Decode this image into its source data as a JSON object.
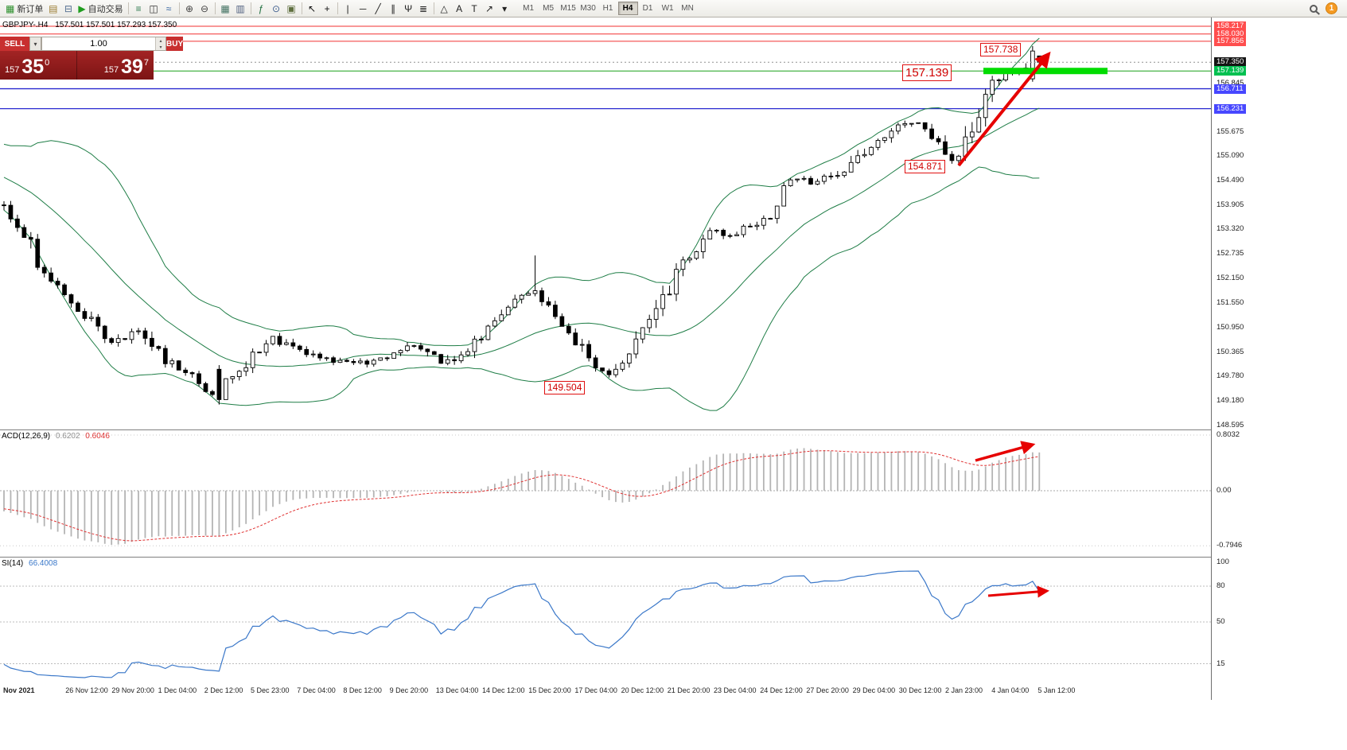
{
  "toolbar": {
    "notification_count": "1",
    "active_timeframe": "H4",
    "timeframes": [
      "M1",
      "M5",
      "M15",
      "M30",
      "H1",
      "H4",
      "D1",
      "W1",
      "MN"
    ],
    "items": [
      {
        "type": "button",
        "name": "new-order-button",
        "glyph": "▦",
        "glyph_color": "#2a8f2a",
        "label": "新订单"
      },
      {
        "type": "icon",
        "name": "market-depth-icon",
        "glyph": "▤",
        "color": "#9a7b2f"
      },
      {
        "type": "icon",
        "name": "history-center-icon",
        "glyph": "⊟",
        "color": "#4f6b8f"
      },
      {
        "type": "button",
        "name": "auto-trading-button",
        "glyph": "▶",
        "glyph_color": "#1f9d1f",
        "label": "自动交易"
      },
      {
        "type": "sep"
      },
      {
        "type": "icon",
        "name": "bar-chart-icon",
        "glyph": "≡",
        "color": "#2f7a4f"
      },
      {
        "type": "icon",
        "name": "candlestick-chart-icon",
        "glyph": "◫",
        "color": "#333333"
      },
      {
        "type": "icon",
        "name": "line-chart-icon",
        "glyph": "≈",
        "color": "#2f5f9f"
      },
      {
        "type": "sep"
      },
      {
        "type": "icon",
        "name": "zoom-in-icon",
        "glyph": "⊕",
        "color": "#444444"
      },
      {
        "type": "icon",
        "name": "zoom-out-icon",
        "glyph": "⊖",
        "color": "#444444"
      },
      {
        "type": "sep"
      },
      {
        "type": "icon",
        "name": "tile-windows-icon",
        "glyph": "▦",
        "color": "#3f6f5f"
      },
      {
        "type": "icon",
        "name": "arrange-windows-icon",
        "glyph": "▥",
        "color": "#4f5f7f"
      },
      {
        "type": "sep"
      },
      {
        "type": "icon",
        "name": "indicators-icon",
        "glyph": "ƒ",
        "color": "#1f6f3f"
      },
      {
        "type": "icon",
        "name": "period-clock-icon",
        "glyph": "⊙",
        "color": "#3f5f8f"
      },
      {
        "type": "icon",
        "name": "templates-icon",
        "glyph": "▣",
        "color": "#5f6f3f"
      },
      {
        "type": "sep"
      },
      {
        "type": "icon",
        "name": "cursor-icon",
        "glyph": "↖",
        "color": "#111111"
      },
      {
        "type": "icon",
        "name": "crosshair-icon",
        "glyph": "+",
        "color": "#111111"
      },
      {
        "type": "sep"
      },
      {
        "type": "icon",
        "name": "vertical-line-icon",
        "glyph": "|",
        "color": "#222222"
      },
      {
        "type": "icon",
        "name": "horizontal-line-icon",
        "glyph": "─",
        "color": "#222222"
      },
      {
        "type": "icon",
        "name": "trendline-icon",
        "glyph": "╱",
        "color": "#222222"
      },
      {
        "type": "icon",
        "name": "channel-icon",
        "glyph": "∥",
        "color": "#222222"
      },
      {
        "type": "icon",
        "name": "pitchfork-icon",
        "glyph": "Ψ",
        "color": "#222222"
      },
      {
        "type": "icon",
        "name": "fibonacci-icon",
        "glyph": "≣",
        "color": "#222222"
      },
      {
        "type": "sep"
      },
      {
        "type": "icon",
        "name": "shapes-icon",
        "glyph": "△",
        "color": "#222222"
      },
      {
        "type": "icon",
        "name": "text-icon",
        "glyph": "A",
        "color": "#222222"
      },
      {
        "type": "icon",
        "name": "label-icon",
        "glyph": "T",
        "color": "#222222"
      },
      {
        "type": "icon",
        "name": "arrows-icon",
        "glyph": "↗",
        "color": "#222222"
      },
      {
        "type": "icon",
        "name": "objects-dropdown-icon",
        "glyph": "▾",
        "color": "#222222"
      }
    ]
  },
  "symbol_header": {
    "title": "GBPJPY-.H4",
    "ohlc": "157.501 157.501 157.293 157.350"
  },
  "trade_panel": {
    "sell_label": "SELL",
    "buy_label": "BUY",
    "volume": "1.00",
    "sell_small": "157",
    "sell_big": "35",
    "sell_sup": "0",
    "buy_small": "157",
    "buy_big": "39",
    "buy_sup": "7"
  },
  "annotations": {
    "labels": [
      {
        "text": "157.738"
      },
      {
        "text": "157.139"
      },
      {
        "text": "154.871"
      },
      {
        "text": "149.504"
      }
    ]
  },
  "price_axis": {
    "tags": [
      {
        "text": "158.217",
        "price": 158.217,
        "type": "red"
      },
      {
        "text": "158.030",
        "price": 158.03,
        "type": "red"
      },
      {
        "text": "157.856",
        "price": 157.856,
        "type": "red"
      },
      {
        "text": "157.350",
        "price": 157.35,
        "type": "current"
      },
      {
        "text": "157.139",
        "price": 157.139,
        "type": "green"
      },
      {
        "text": "156.845",
        "price": 156.845,
        "type": "plain"
      },
      {
        "text": "156.711",
        "price": 156.711,
        "type": "blue"
      },
      {
        "text": "156.231",
        "price": 156.231,
        "type": "blue"
      }
    ],
    "ticks": [
      "155.675",
      "155.090",
      "154.490",
      "153.905",
      "153.320",
      "152.735",
      "152.150",
      "151.550",
      "150.950",
      "150.365",
      "149.780",
      "149.180",
      "148.595"
    ]
  },
  "time_axis": [
    "Nov 2021",
    "26 Nov 12:00",
    "29 Nov 20:00",
    "1 Dec 04:00",
    "2 Dec 12:00",
    "5 Dec 23:00",
    "7 Dec 04:00",
    "8 Dec 12:00",
    "9 Dec 20:00",
    "13 Dec 04:00",
    "14 Dec 12:00",
    "15 Dec 20:00",
    "17 Dec 04:00",
    "20 Dec 12:00",
    "21 Dec 20:00",
    "23 Dec 04:00",
    "24 Dec 12:00",
    "27 Dec 20:00",
    "29 Dec 04:00",
    "30 Dec 12:00",
    "2 Jan 23:00",
    "4 Jan 04:00",
    "5 Jan 12:00"
  ],
  "indicators": {
    "macd": {
      "name": "ACD(12,26,9)",
      "main_value": "0.6202",
      "signal_value": "0.6046",
      "axis": [
        {
          "text": "0.8032",
          "value": 0.8032
        },
        {
          "text": "0.00",
          "value": 0
        },
        {
          "text": "-0.7946",
          "value": -0.7946
        }
      ]
    },
    "rsi": {
      "name": "SI(14)",
      "value": "66.4008",
      "axis": [
        {
          "text": "100",
          "value": 100
        },
        {
          "text": "80",
          "value": 80
        },
        {
          "text": "50",
          "value": 50
        },
        {
          "text": "15",
          "value": 15
        }
      ]
    }
  },
  "chart_data": {
    "type": "candlestick",
    "symbol": "GBPJPY-",
    "timeframe": "H4",
    "current_bar": {
      "open": 157.501,
      "high": 157.501,
      "low": 157.293,
      "close": 157.35
    },
    "price_range": [
      148.595,
      158.217
    ],
    "levels": {
      "red_resistance": [
        158.217,
        158.03,
        157.856
      ],
      "green_support": 157.139,
      "green_band_price": 157.139,
      "blue_support": [
        156.711,
        156.231
      ],
      "current_price": 157.35
    },
    "marked_prices": [
      157.738,
      157.139,
      154.871,
      149.504
    ],
    "bollinger": {
      "period": 20,
      "deviation": 2
    },
    "macd_params": {
      "fast": 12,
      "slow": 26,
      "signal": 9
    },
    "rsi_params": {
      "period": 14
    },
    "candle_count": 155,
    "seed": 42,
    "price_path": [
      [
        -0.2,
        155.9
      ],
      [
        -0.12,
        155.2
      ],
      [
        -0.05,
        154.5
      ],
      [
        0,
        153.95
      ],
      [
        0.02,
        153.4
      ],
      [
        0.04,
        152.35
      ],
      [
        0.07,
        151.6
      ],
      [
        0.105,
        150.6
      ],
      [
        0.135,
        150.9
      ],
      [
        0.16,
        150.15
      ],
      [
        0.185,
        149.8
      ],
      [
        0.205,
        149.3
      ],
      [
        0.23,
        149.9
      ],
      [
        0.26,
        150.7
      ],
      [
        0.3,
        150.25
      ],
      [
        0.34,
        150.05
      ],
      [
        0.38,
        150.3
      ],
      [
        0.405,
        150.55
      ],
      [
        0.425,
        150.05
      ],
      [
        0.455,
        150.5
      ],
      [
        0.49,
        151.4
      ],
      [
        0.51,
        151.9
      ],
      [
        0.525,
        151.5
      ],
      [
        0.545,
        151.0
      ],
      [
        0.56,
        150.55
      ],
      [
        0.575,
        149.95
      ],
      [
        0.59,
        149.8
      ],
      [
        0.61,
        150.3
      ],
      [
        0.625,
        151.0
      ],
      [
        0.64,
        151.6
      ],
      [
        0.655,
        152.3
      ],
      [
        0.67,
        152.85
      ],
      [
        0.685,
        153.3
      ],
      [
        0.7,
        153.15
      ],
      [
        0.715,
        153.3
      ],
      [
        0.74,
        153.6
      ],
      [
        0.755,
        154.3
      ],
      [
        0.77,
        154.55
      ],
      [
        0.785,
        154.4
      ],
      [
        0.81,
        154.65
      ],
      [
        0.825,
        155.0
      ],
      [
        0.84,
        155.3
      ],
      [
        0.855,
        155.55
      ],
      [
        0.87,
        155.8
      ],
      [
        0.885,
        156.0
      ],
      [
        0.9,
        155.65
      ],
      [
        0.915,
        155.05
      ],
      [
        0.925,
        154.95
      ],
      [
        0.94,
        155.9
      ],
      [
        0.95,
        156.5
      ],
      [
        0.962,
        157.0
      ],
      [
        0.973,
        157.15
      ],
      [
        0.985,
        157.05
      ],
      [
        1,
        157.45
      ]
    ]
  }
}
